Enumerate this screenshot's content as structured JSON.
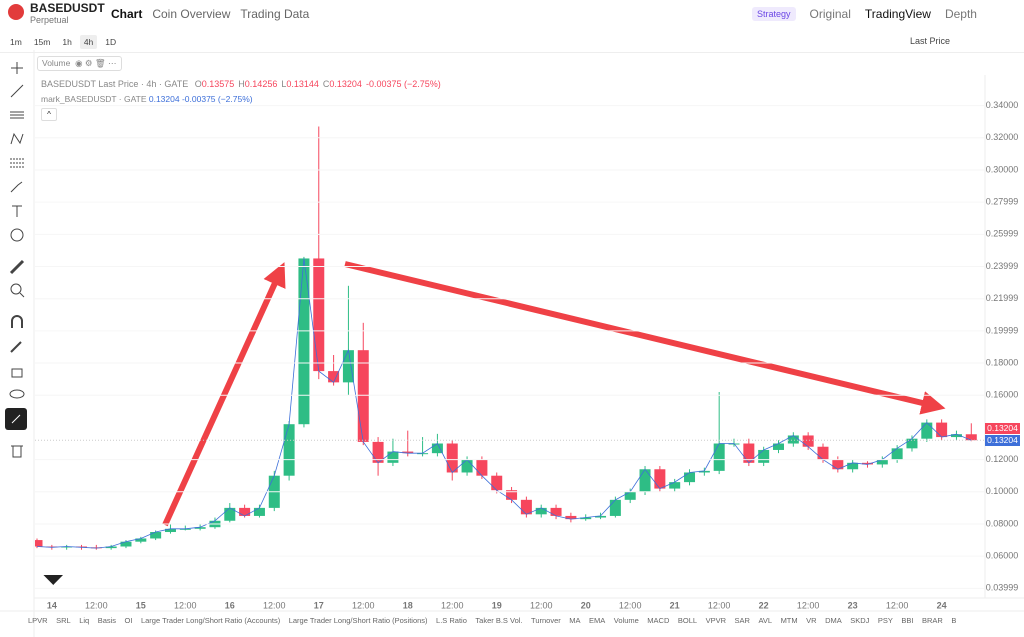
{
  "header": {
    "symbol": "BASEDUSDT",
    "subtitle": "Perpetual",
    "tabs": [
      "Chart",
      "Coin Overview",
      "Trading Data"
    ],
    "right": [
      "Strategy",
      "Original",
      "TradingView",
      "Depth"
    ]
  },
  "toolbar": {
    "intervals": [
      "1m",
      "15m",
      "1h",
      "4h",
      "1D"
    ],
    "price_type": "Last Price"
  },
  "legend": {
    "volume": "Volume",
    "title": "BASEDUSDT Last Price · 4h · GATE",
    "ohlc_keys": [
      "O",
      "H",
      "L",
      "C"
    ],
    "change": "-0.00375 (−2.75%)",
    "mark": "mark_BASEDUSDT · GATE",
    "mark_price": "0.13204",
    "mark_change": "-0.00375 (−2.75%)"
  },
  "chart_data": {
    "type": "candlestick",
    "up_color": "#2ebd85",
    "down_color": "#f6465d",
    "mark_color": "#3d6fd9",
    "categories": [
      null,
      "14",
      null,
      null,
      "12:00",
      null,
      null,
      "15",
      null,
      null,
      "12:00",
      null,
      null,
      "16",
      null,
      null,
      "12:00",
      null,
      null,
      "17",
      null,
      null,
      "12:00",
      null,
      null,
      "18",
      null,
      null,
      "12:00",
      null,
      null,
      "19",
      null,
      null,
      "12:00",
      null,
      null,
      "20",
      null,
      null,
      "12:00",
      null,
      null,
      "21",
      null,
      null,
      "12:00",
      null,
      null,
      "22",
      null,
      null,
      "12:00",
      null,
      null,
      "23",
      null,
      null,
      "12:00",
      null,
      null,
      "24",
      null,
      null
    ],
    "open": [
      0.07,
      0.066,
      0.0655,
      0.066,
      0.0655,
      0.065,
      0.066,
      0.069,
      0.071,
      0.075,
      0.077,
      0.077,
      0.078,
      0.082,
      0.09,
      0.085,
      0.09,
      0.11,
      0.142,
      0.245,
      0.175,
      0.168,
      0.188,
      0.131,
      0.118,
      0.125,
      0.124,
      0.124,
      0.13,
      0.112,
      0.12,
      0.11,
      0.101,
      0.095,
      0.086,
      0.09,
      0.085,
      0.083,
      0.084,
      0.085,
      0.095,
      0.1,
      0.114,
      0.102,
      0.106,
      0.112,
      0.113,
      0.13,
      0.13,
      0.118,
      0.126,
      0.13,
      0.135,
      0.128,
      0.12,
      0.114,
      0.118,
      0.117,
      0.12,
      0.127,
      0.133,
      0.143,
      0.134,
      0.13575
    ],
    "high": [
      0.071,
      0.067,
      0.067,
      0.067,
      0.067,
      0.067,
      0.07,
      0.072,
      0.076,
      0.08,
      0.079,
      0.08,
      0.084,
      0.093,
      0.092,
      0.092,
      0.113,
      0.144,
      0.246,
      0.327,
      0.185,
      0.228,
      0.205,
      0.134,
      0.133,
      0.138,
      0.134,
      0.136,
      0.132,
      0.122,
      0.122,
      0.112,
      0.103,
      0.097,
      0.092,
      0.092,
      0.087,
      0.086,
      0.087,
      0.097,
      0.102,
      0.116,
      0.116,
      0.108,
      0.114,
      0.115,
      0.162,
      0.133,
      0.133,
      0.128,
      0.132,
      0.137,
      0.137,
      0.13,
      0.122,
      0.12,
      0.119,
      0.122,
      0.129,
      0.135,
      0.145,
      0.145,
      0.138,
      0.14256
    ],
    "low": [
      0.065,
      0.064,
      0.064,
      0.064,
      0.064,
      0.064,
      0.065,
      0.068,
      0.07,
      0.074,
      0.076,
      0.076,
      0.077,
      0.081,
      0.084,
      0.084,
      0.088,
      0.107,
      0.14,
      0.17,
      0.166,
      0.16,
      0.129,
      0.11,
      0.116,
      0.122,
      0.122,
      0.122,
      0.107,
      0.11,
      0.108,
      0.099,
      0.093,
      0.084,
      0.084,
      0.083,
      0.081,
      0.082,
      0.083,
      0.084,
      0.093,
      0.098,
      0.1,
      0.1,
      0.104,
      0.11,
      0.111,
      0.128,
      0.116,
      0.116,
      0.124,
      0.128,
      0.126,
      0.118,
      0.112,
      0.112,
      0.115,
      0.115,
      0.118,
      0.125,
      0.131,
      0.132,
      0.132,
      0.13144
    ],
    "close": [
      0.066,
      0.0655,
      0.066,
      0.0655,
      0.065,
      0.066,
      0.069,
      0.071,
      0.075,
      0.077,
      0.077,
      0.078,
      0.082,
      0.09,
      0.085,
      0.09,
      0.11,
      0.142,
      0.245,
      0.175,
      0.168,
      0.188,
      0.131,
      0.118,
      0.125,
      0.124,
      0.124,
      0.13,
      0.112,
      0.12,
      0.11,
      0.101,
      0.095,
      0.086,
      0.09,
      0.085,
      0.083,
      0.084,
      0.085,
      0.095,
      0.1,
      0.114,
      0.102,
      0.106,
      0.112,
      0.113,
      0.13,
      0.13,
      0.118,
      0.126,
      0.13,
      0.135,
      0.128,
      0.12,
      0.114,
      0.118,
      0.117,
      0.12,
      0.127,
      0.133,
      0.143,
      0.134,
      0.1358,
      0.13204
    ],
    "ylim": [
      0.034,
      0.359
    ],
    "yticks": [
      {
        "value": 0.34,
        "label": "0.34000"
      },
      {
        "value": 0.32,
        "label": "0.32000"
      },
      {
        "value": 0.3,
        "label": "0.30000"
      },
      {
        "value": 0.27999,
        "label": "0.27999"
      },
      {
        "value": 0.25999,
        "label": "0.25999"
      },
      {
        "value": 0.23999,
        "label": "0.23999"
      },
      {
        "value": 0.21999,
        "label": "0.21999"
      },
      {
        "value": 0.19999,
        "label": "0.19999"
      },
      {
        "value": 0.18,
        "label": "0.18000"
      },
      {
        "value": 0.16,
        "label": "0.16000"
      },
      {
        "value": 0.12,
        "label": "0.12000"
      },
      {
        "value": 0.1,
        "label": "0.10000"
      },
      {
        "value": 0.08,
        "label": "0.08000"
      },
      {
        "value": 0.06,
        "label": "0.06000"
      },
      {
        "value": 0.03999,
        "label": "0.03999"
      }
    ]
  },
  "indicators": [
    "LPVR",
    "SRL",
    "Liq",
    "Basis",
    "OI",
    "Large Trader Long/Short Ratio (Accounts)",
    "Large Trader Long/Short Ratio (Positions)",
    "L.S Ratio",
    "Taker B.S Vol.",
    "Turnover",
    "MA",
    "EMA",
    "Volume",
    "MACD",
    "BOLL",
    "VPVR",
    "SAR",
    "AVL",
    "MTM",
    "VR",
    "DMA",
    "SKDJ",
    "PSY",
    "BBI",
    "BRAR",
    "B"
  ]
}
